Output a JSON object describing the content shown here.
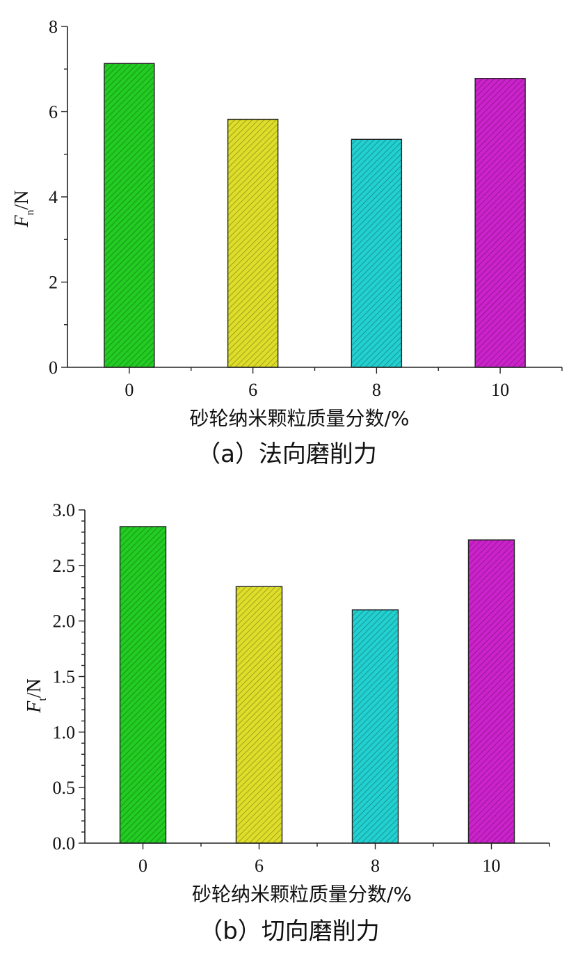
{
  "chart_data": [
    {
      "type": "bar",
      "categories": [
        "0",
        "6",
        "8",
        "10"
      ],
      "values": [
        7.13,
        5.82,
        5.35,
        6.78
      ],
      "bar_colors": [
        "#22cc22",
        "#dede2a",
        "#22d0d0",
        "#cc22cc"
      ],
      "xlabel": "砂轮纳米颗粒质量分数/%",
      "ylabel_main": "F",
      "ylabel_sub": "n",
      "ylabel_unit": "/N",
      "ylim": [
        0,
        8
      ],
      "yticks": [
        0,
        2,
        4,
        6,
        8
      ],
      "ytick_labels": [
        "0",
        "2",
        "4",
        "6",
        "8"
      ],
      "caption": "（a）法向磨削力"
    },
    {
      "type": "bar",
      "categories": [
        "0",
        "6",
        "8",
        "10"
      ],
      "values": [
        2.85,
        2.31,
        2.1,
        2.73
      ],
      "bar_colors": [
        "#22cc22",
        "#dede2a",
        "#22d0d0",
        "#cc22cc"
      ],
      "xlabel": "砂轮纳米颗粒质量分数/%",
      "ylabel_main": "F",
      "ylabel_sub": "t",
      "ylabel_unit": "/N",
      "ylim": [
        0,
        3.0
      ],
      "yticks": [
        0,
        0.5,
        1.0,
        1.5,
        2.0,
        2.5,
        3.0
      ],
      "ytick_labels": [
        "0.0",
        "0.5",
        "1.0",
        "1.5",
        "2.0",
        "2.5",
        "3.0"
      ],
      "caption": "（b）切向磨削力"
    }
  ]
}
